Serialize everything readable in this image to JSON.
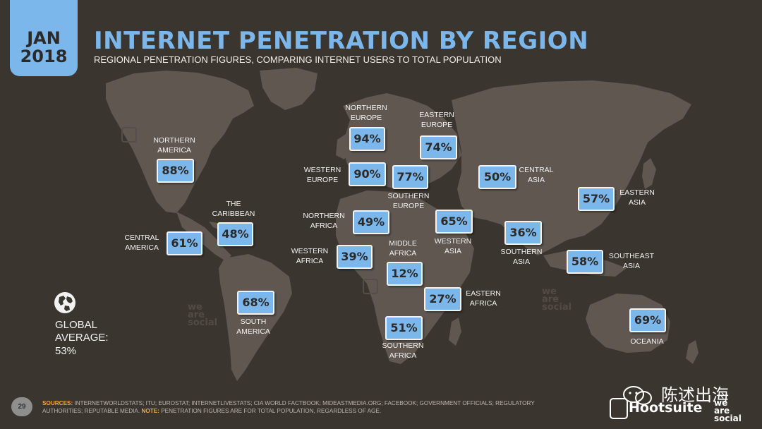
{
  "header": {
    "month": "JAN",
    "year": "2018",
    "title": "INTERNET PENETRATION BY REGION",
    "subtitle": "REGIONAL PENETRATION FIGURES, COMPARING INTERNET USERS TO TOTAL POPULATION"
  },
  "regions": [
    {
      "id": "northern-america",
      "label": "NORTHERN\nAMERICA",
      "value": "88%"
    },
    {
      "id": "the-caribbean",
      "label": "THE\nCARIBBEAN",
      "value": "48%"
    },
    {
      "id": "central-america",
      "label": "CENTRAL\nAMERICA",
      "value": "61%"
    },
    {
      "id": "south-america",
      "label": "SOUTH\nAMERICA",
      "value": "68%"
    },
    {
      "id": "northern-europe",
      "label": "NORTHERN\nEUROPE",
      "value": "94%"
    },
    {
      "id": "western-europe",
      "label": "WESTERN\nEUROPE",
      "value": "90%"
    },
    {
      "id": "southern-europe",
      "label": "SOUTHERN\nEUROPE",
      "value": "77%"
    },
    {
      "id": "eastern-europe",
      "label": "EASTERN\nEUROPE",
      "value": "74%"
    },
    {
      "id": "northern-africa",
      "label": "NORTHERN\nAFRICA",
      "value": "49%"
    },
    {
      "id": "western-africa",
      "label": "WESTERN\nAFRICA",
      "value": "39%"
    },
    {
      "id": "middle-africa",
      "label": "MIDDLE\nAFRICA",
      "value": "12%"
    },
    {
      "id": "eastern-africa",
      "label": "EASTERN\nAFRICA",
      "value": "27%"
    },
    {
      "id": "southern-africa",
      "label": "SOUTHERN\nAFRICA",
      "value": "51%"
    },
    {
      "id": "western-asia",
      "label": "WESTERN\nASIA",
      "value": "65%"
    },
    {
      "id": "central-asia",
      "label": "CENTRAL\nASIA",
      "value": "50%"
    },
    {
      "id": "southern-asia",
      "label": "SOUTHERN\nASIA",
      "value": "36%"
    },
    {
      "id": "eastern-asia",
      "label": "EASTERN\nASIA",
      "value": "57%"
    },
    {
      "id": "southeast-asia",
      "label": "SOUTHEAST\nASIA",
      "value": "58%"
    },
    {
      "id": "oceania",
      "label": "OCEANIA",
      "value": "69%"
    }
  ],
  "global": {
    "label": "GLOBAL\nAVERAGE:",
    "value": "53%"
  },
  "footer": {
    "page_number": "29",
    "sources_label": "SOURCES:",
    "sources_text": " INTERNETWORLDSTATS; ITU; EUROSTAT; INTERNETLIVESTATS; CIA WORLD FACTBOOK; MIDEASTMEDIA.ORG; FACEBOOK; GOVERNMENT OFFICIALS; REGULATORY AUTHORITIES; REPUTABLE MEDIA. ",
    "note_label": "NOTE:",
    "note_text": " PENETRATION FIGURES ARE FOR TOTAL POPULATION, REGARDLESS OF AGE."
  },
  "watermarks": {
    "map_mark": "we\nare\nsocial",
    "wechat_text": "陈述出海",
    "brand": "Hootsuite",
    "brand_mark": "we\nare\nsocial"
  },
  "colors": {
    "background": "#3b3530",
    "land": "#5f5750",
    "accent": "#7cb7eb",
    "text": "#f2f2f2",
    "highlight": "#f0a640"
  }
}
